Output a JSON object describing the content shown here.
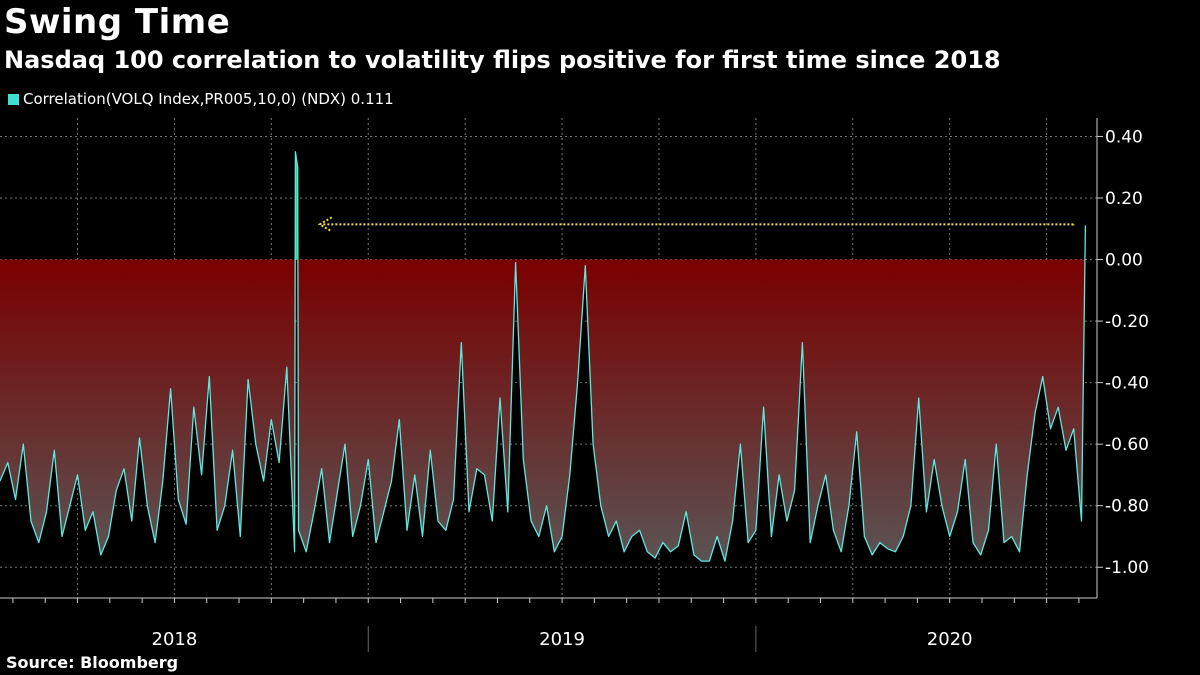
{
  "header": {
    "title": "Swing Time",
    "subtitle": "Nasdaq 100 correlation to volatility flips positive for first time since 2018"
  },
  "legend": {
    "label": "Correlation(VOLQ Index,PR005,10,0) (NDX) 0.111",
    "color": "#40e0d0"
  },
  "footer": {
    "source": "Source: Bloomberg"
  },
  "colors": {
    "line": "#5ee8e0",
    "positive_fill": "#3cd17a",
    "negative_fill_top": "#7a0000",
    "negative_fill_bottom": "#5a5555",
    "arrow": "#f0e040",
    "grid": "#777777"
  },
  "chart_data": {
    "type": "area",
    "title": "Swing Time",
    "subtitle": "Nasdaq 100 correlation to volatility flips positive for first time since 2018",
    "series": [
      {
        "name": "Correlation(VOLQ Index,PR005,10,0) (NDX)",
        "last_value": 0.111,
        "points": [
          [
            2017.55,
            -0.72
          ],
          [
            2017.57,
            -0.66
          ],
          [
            2017.59,
            -0.78
          ],
          [
            2017.61,
            -0.6
          ],
          [
            2017.63,
            -0.85
          ],
          [
            2017.65,
            -0.92
          ],
          [
            2017.67,
            -0.82
          ],
          [
            2017.69,
            -0.62
          ],
          [
            2017.71,
            -0.9
          ],
          [
            2017.73,
            -0.8
          ],
          [
            2017.75,
            -0.7
          ],
          [
            2017.77,
            -0.88
          ],
          [
            2017.79,
            -0.82
          ],
          [
            2017.81,
            -0.96
          ],
          [
            2017.83,
            -0.9
          ],
          [
            2017.85,
            -0.75
          ],
          [
            2017.87,
            -0.68
          ],
          [
            2017.89,
            -0.85
          ],
          [
            2017.91,
            -0.58
          ],
          [
            2017.93,
            -0.8
          ],
          [
            2017.95,
            -0.92
          ],
          [
            2017.97,
            -0.72
          ],
          [
            2017.99,
            -0.42
          ],
          [
            2018.01,
            -0.78
          ],
          [
            2018.03,
            -0.86
          ],
          [
            2018.05,
            -0.48
          ],
          [
            2018.07,
            -0.7
          ],
          [
            2018.09,
            -0.38
          ],
          [
            2018.11,
            -0.88
          ],
          [
            2018.13,
            -0.8
          ],
          [
            2018.15,
            -0.62
          ],
          [
            2018.17,
            -0.9
          ],
          [
            2018.19,
            -0.39
          ],
          [
            2018.21,
            -0.6
          ],
          [
            2018.23,
            -0.72
          ],
          [
            2018.25,
            -0.52
          ],
          [
            2018.27,
            -0.66
          ],
          [
            2018.29,
            -0.35
          ],
          [
            2018.31,
            -0.95
          ],
          [
            2018.312,
            0.35
          ],
          [
            2018.318,
            0.3
          ],
          [
            2018.32,
            -0.88
          ],
          [
            2018.34,
            -0.95
          ],
          [
            2018.36,
            -0.82
          ],
          [
            2018.38,
            -0.68
          ],
          [
            2018.4,
            -0.92
          ],
          [
            2018.42,
            -0.76
          ],
          [
            2018.44,
            -0.6
          ],
          [
            2018.46,
            -0.9
          ],
          [
            2018.48,
            -0.8
          ],
          [
            2018.5,
            -0.65
          ],
          [
            2018.52,
            -0.92
          ],
          [
            2018.54,
            -0.82
          ],
          [
            2018.56,
            -0.72
          ],
          [
            2018.58,
            -0.52
          ],
          [
            2018.6,
            -0.88
          ],
          [
            2018.62,
            -0.7
          ],
          [
            2018.64,
            -0.9
          ],
          [
            2018.66,
            -0.62
          ],
          [
            2018.68,
            -0.85
          ],
          [
            2018.7,
            -0.88
          ],
          [
            2018.72,
            -0.78
          ],
          [
            2018.74,
            -0.27
          ],
          [
            2018.76,
            -0.82
          ],
          [
            2018.78,
            -0.68
          ],
          [
            2018.8,
            -0.7
          ],
          [
            2018.82,
            -0.85
          ],
          [
            2018.84,
            -0.45
          ],
          [
            2018.86,
            -0.82
          ],
          [
            2018.88,
            -0.01
          ],
          [
            2018.9,
            -0.65
          ],
          [
            2018.92,
            -0.85
          ],
          [
            2018.94,
            -0.9
          ],
          [
            2018.96,
            -0.8
          ],
          [
            2018.98,
            -0.95
          ],
          [
            2019.0,
            -0.9
          ],
          [
            2019.02,
            -0.7
          ],
          [
            2019.04,
            -0.4
          ],
          [
            2019.06,
            -0.02
          ],
          [
            2019.08,
            -0.6
          ],
          [
            2019.1,
            -0.8
          ],
          [
            2019.12,
            -0.9
          ],
          [
            2019.14,
            -0.85
          ],
          [
            2019.16,
            -0.95
          ],
          [
            2019.18,
            -0.9
          ],
          [
            2019.2,
            -0.88
          ],
          [
            2019.22,
            -0.95
          ],
          [
            2019.24,
            -0.97
          ],
          [
            2019.26,
            -0.92
          ],
          [
            2019.28,
            -0.95
          ],
          [
            2019.3,
            -0.93
          ],
          [
            2019.32,
            -0.82
          ],
          [
            2019.34,
            -0.96
          ],
          [
            2019.36,
            -0.98
          ],
          [
            2019.38,
            -0.98
          ],
          [
            2019.4,
            -0.9
          ],
          [
            2019.42,
            -0.98
          ],
          [
            2019.44,
            -0.85
          ],
          [
            2019.46,
            -0.6
          ],
          [
            2019.48,
            -0.92
          ],
          [
            2019.5,
            -0.88
          ],
          [
            2019.52,
            -0.48
          ],
          [
            2019.54,
            -0.9
          ],
          [
            2019.56,
            -0.7
          ],
          [
            2019.58,
            -0.85
          ],
          [
            2019.6,
            -0.75
          ],
          [
            2019.62,
            -0.27
          ],
          [
            2019.64,
            -0.92
          ],
          [
            2019.66,
            -0.8
          ],
          [
            2019.68,
            -0.7
          ],
          [
            2019.7,
            -0.88
          ],
          [
            2019.72,
            -0.95
          ],
          [
            2019.74,
            -0.8
          ],
          [
            2019.76,
            -0.56
          ],
          [
            2019.78,
            -0.9
          ],
          [
            2019.8,
            -0.96
          ],
          [
            2019.82,
            -0.92
          ],
          [
            2019.84,
            -0.94
          ],
          [
            2019.86,
            -0.95
          ],
          [
            2019.88,
            -0.9
          ],
          [
            2019.9,
            -0.8
          ],
          [
            2019.92,
            -0.45
          ],
          [
            2019.94,
            -0.82
          ],
          [
            2019.96,
            -0.65
          ],
          [
            2019.98,
            -0.8
          ],
          [
            2020.0,
            -0.9
          ],
          [
            2020.02,
            -0.82
          ],
          [
            2020.04,
            -0.65
          ],
          [
            2020.06,
            -0.92
          ],
          [
            2020.08,
            -0.96
          ],
          [
            2020.1,
            -0.88
          ],
          [
            2020.12,
            -0.6
          ],
          [
            2020.14,
            -0.92
          ],
          [
            2020.16,
            -0.9
          ],
          [
            2020.18,
            -0.95
          ],
          [
            2020.2,
            -0.7
          ],
          [
            2020.22,
            -0.5
          ],
          [
            2020.24,
            -0.38
          ],
          [
            2020.26,
            -0.55
          ],
          [
            2020.28,
            -0.48
          ],
          [
            2020.3,
            -0.62
          ],
          [
            2020.32,
            -0.55
          ],
          [
            2020.34,
            -0.85
          ],
          [
            2020.35,
            0.111
          ]
        ]
      }
    ],
    "y_ticks": [
      "0.40",
      "0.20",
      "0.00",
      "-0.20",
      "-0.40",
      "-0.60",
      "-0.80",
      "-1.00"
    ],
    "ylim": [
      -1.1,
      0.46
    ],
    "x_labels": [
      "2018",
      "2019",
      "2020"
    ],
    "xlim": [
      2017.55,
      2020.38
    ],
    "annotation": {
      "type": "arrow",
      "value": 0.111,
      "from_x": 2020.35,
      "to_x": 2018.38
    },
    "grid": true
  }
}
